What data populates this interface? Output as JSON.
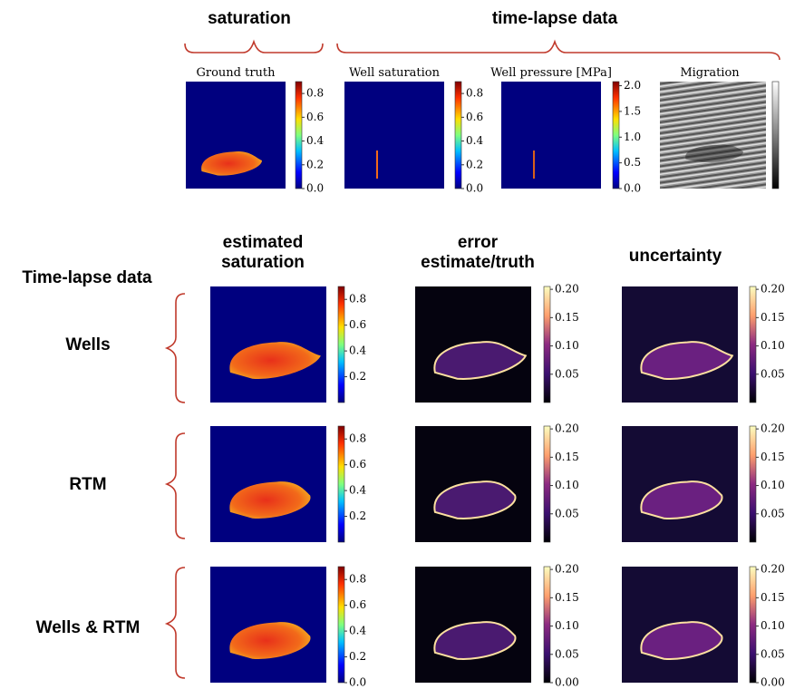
{
  "header": {
    "left": "saturation",
    "right": "time-lapse data"
  },
  "top_panels": [
    {
      "title": "Ground truth",
      "colorbar_ticks": [
        "0.0",
        "0.2",
        "0.4",
        "0.6",
        "0.8"
      ]
    },
    {
      "title": "Well saturation",
      "colorbar_ticks": [
        "0.0",
        "0.2",
        "0.4",
        "0.6",
        "0.8"
      ]
    },
    {
      "title": "Well pressure [MPa]",
      "colorbar_ticks": [
        "0.0",
        "0.5",
        "1.0",
        "1.5",
        "2.0"
      ]
    },
    {
      "title": "Migration",
      "colorbar_ticks": []
    }
  ],
  "bottom": {
    "row_heading": "Time-lapse data",
    "columns": [
      [
        "estimated",
        "saturation"
      ],
      [
        "error",
        "estimate/truth"
      ],
      [
        "uncertainty"
      ]
    ],
    "rows": [
      {
        "label": "Wells",
        "colorbar_ticks": [
          [
            "0.2",
            "0.4",
            "0.6",
            "0.8"
          ],
          [
            "0.05",
            "0.10",
            "0.15",
            "0.20"
          ],
          [
            "0.05",
            "0.10",
            "0.15",
            "0.20"
          ]
        ]
      },
      {
        "label": "RTM",
        "colorbar_ticks": [
          [
            "0.2",
            "0.4",
            "0.6",
            "0.8"
          ],
          [
            "0.05",
            "0.10",
            "0.15",
            "0.20"
          ],
          [
            "0.05",
            "0.10",
            "0.15",
            "0.20"
          ]
        ]
      },
      {
        "label": "Wells & RTM",
        "colorbar_ticks": [
          [
            "0.0",
            "0.2",
            "0.4",
            "0.6",
            "0.8"
          ],
          [
            "0.00",
            "0.05",
            "0.10",
            "0.15",
            "0.20"
          ],
          [
            "0.00",
            "0.05",
            "0.10",
            "0.15",
            "0.20"
          ]
        ]
      }
    ]
  }
}
